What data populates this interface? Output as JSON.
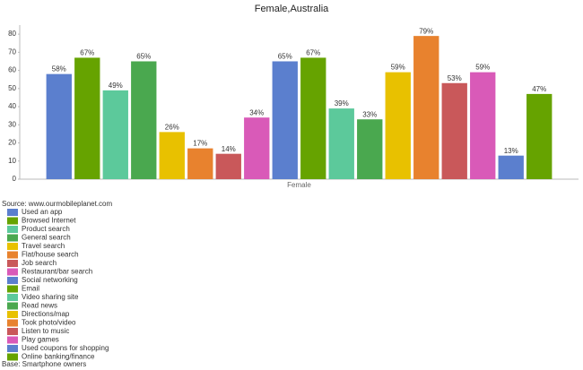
{
  "chart_data": {
    "type": "bar",
    "title": "Female,Australia",
    "categories": [
      "Female"
    ],
    "series": [
      {
        "name": "Used an app",
        "color": "#5b7fce",
        "values": [
          58
        ],
        "value_labels": [
          "58%"
        ]
      },
      {
        "name": "Browsed Internet",
        "color": "#66a300",
        "values": [
          67
        ],
        "value_labels": [
          "67%"
        ]
      },
      {
        "name": "Product search",
        "color": "#5cc99b",
        "values": [
          49
        ],
        "value_labels": [
          "49%"
        ]
      },
      {
        "name": "General search",
        "color": "#4aa84f",
        "values": [
          65
        ],
        "value_labels": [
          "65%"
        ]
      },
      {
        "name": "Travel search",
        "color": "#e8c100",
        "values": [
          26
        ],
        "value_labels": [
          "26%"
        ]
      },
      {
        "name": "Flat/house search",
        "color": "#e8822e",
        "values": [
          17
        ],
        "value_labels": [
          "17%"
        ]
      },
      {
        "name": "Job search",
        "color": "#c9585a",
        "values": [
          14
        ],
        "value_labels": [
          "14%"
        ]
      },
      {
        "name": "Restaurant/bar search",
        "color": "#d95ab8",
        "values": [
          34
        ],
        "value_labels": [
          "34%"
        ]
      },
      {
        "name": "Social networking",
        "color": "#5b7fce",
        "values": [
          65
        ],
        "value_labels": [
          "65%"
        ]
      },
      {
        "name": "Email",
        "color": "#66a300",
        "values": [
          67
        ],
        "value_labels": [
          "67%"
        ]
      },
      {
        "name": "Video sharing site",
        "color": "#5cc99b",
        "values": [
          39
        ],
        "value_labels": [
          "39%"
        ]
      },
      {
        "name": "Read news",
        "color": "#4aa84f",
        "values": [
          33
        ],
        "value_labels": [
          "33%"
        ]
      },
      {
        "name": "Directions/map",
        "color": "#e8c100",
        "values": [
          59
        ],
        "value_labels": [
          "59%"
        ]
      },
      {
        "name": "Took photo/video",
        "color": "#e8822e",
        "values": [
          79
        ],
        "value_labels": [
          "79%"
        ]
      },
      {
        "name": "Listen to music",
        "color": "#c9585a",
        "values": [
          53
        ],
        "value_labels": [
          "53%"
        ]
      },
      {
        "name": "Play games",
        "color": "#d95ab8",
        "values": [
          59
        ],
        "value_labels": [
          "59%"
        ]
      },
      {
        "name": "Used coupons for shopping",
        "color": "#5b7fce",
        "values": [
          13
        ],
        "value_labels": [
          "13%"
        ]
      },
      {
        "name": "Online banking/finance",
        "color": "#66a300",
        "values": [
          47
        ],
        "value_labels": [
          "47%"
        ]
      }
    ],
    "ylim": [
      0,
      85
    ],
    "yticks": [
      0,
      10,
      20,
      30,
      40,
      50,
      60,
      70,
      80
    ],
    "grid": false,
    "source": "Source: www.ourmobileplanet.com",
    "base": "Base:  Smartphone owners"
  }
}
